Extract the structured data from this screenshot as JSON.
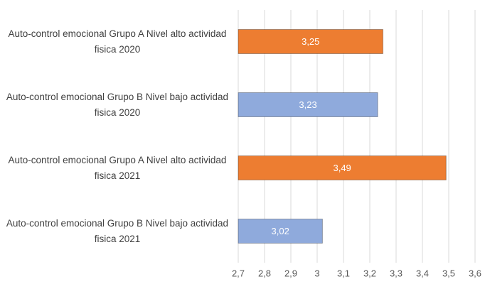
{
  "chart_data": {
    "type": "barh",
    "categories": [
      "Auto-control emocional Grupo A Nivel alto actividad fisica 2020",
      "Auto-control emocional Grupo B Nivel bajo actividad fisica 2020",
      "Auto-control emocional Grupo A Nivel alto actividad fisica 2021",
      "Auto-control emocional Grupo B Nivel bajo actividad fisica 2021"
    ],
    "values": [
      3.25,
      3.23,
      3.49,
      3.02
    ],
    "value_labels": [
      "3,25",
      "3,23",
      "3,49",
      "3,02"
    ],
    "colors": [
      "#ed7d31",
      "#8faadc",
      "#ed7d31",
      "#8faadc"
    ],
    "xlim": [
      2.7,
      3.6
    ],
    "xticks": [
      {
        "value": 2.7,
        "label": "2,7"
      },
      {
        "value": 2.8,
        "label": "2,8"
      },
      {
        "value": 2.9,
        "label": "2,9"
      },
      3,
      {
        "value": 3.1,
        "label": "3,1"
      },
      {
        "value": 3.2,
        "label": "3,2"
      },
      {
        "value": 3.3,
        "label": "3,3"
      },
      {
        "value": 3.4,
        "label": "3,4"
      },
      {
        "value": 3.5,
        "label": "3,5"
      },
      {
        "value": 3.6,
        "label": "3,6"
      }
    ],
    "grid": true
  }
}
